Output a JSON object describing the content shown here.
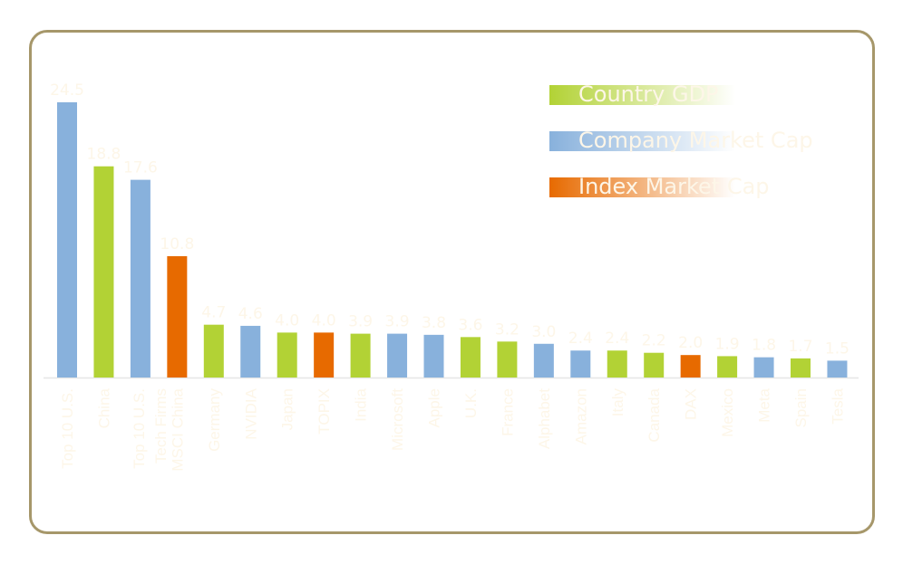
{
  "chart_data": {
    "type": "bar",
    "categories": [
      "Top 10 U.S.",
      "China",
      "Top 10 U.S. Tech Firms",
      "MSCI China",
      "Germany",
      "NVIDIA",
      "Japan",
      "TOPIX",
      "India",
      "Microsoft",
      "Apple",
      "U.K.",
      "France",
      "Alphabet",
      "Amazon",
      "Italy",
      "Canada",
      "DAX",
      "Mexico",
      "Meta",
      "Spain",
      "Tesla"
    ],
    "values": [
      24.5,
      18.8,
      17.6,
      10.8,
      4.7,
      4.6,
      4.0,
      4.0,
      3.9,
      3.9,
      3.8,
      3.6,
      3.2,
      3.0,
      2.4,
      2.4,
      2.2,
      2.0,
      1.9,
      1.8,
      1.7,
      1.5
    ],
    "value_labels": [
      "24.5",
      "18.8",
      "17.6",
      "10.8",
      "4.7",
      "4.6",
      "4.0",
      "4.0",
      "3.9",
      "3.9",
      "3.8",
      "3.6",
      "3.2",
      "3.0",
      "2.4",
      "2.4",
      "2.2",
      "2.0",
      "1.9",
      "1.8",
      "1.7",
      "1.5"
    ],
    "groups": [
      "company",
      "country",
      "company",
      "index",
      "country",
      "company",
      "country",
      "index",
      "country",
      "company",
      "company",
      "country",
      "country",
      "company",
      "company",
      "country",
      "country",
      "index",
      "country",
      "company",
      "country",
      "company"
    ],
    "legend": [
      {
        "key": "country",
        "name": "Country GDP",
        "color": "#b2d235"
      },
      {
        "key": "company",
        "name": "Company Market Cap",
        "color": "#88b1dc"
      },
      {
        "key": "index",
        "name": "Index Market Cap",
        "color": "#e76a00"
      }
    ],
    "legend_position": "top-right",
    "ylim": [
      0,
      24.5
    ],
    "grid": false,
    "title": "",
    "xlabel": "",
    "ylabel": ""
  },
  "colors": {
    "border": "#a6976a",
    "text": "#fdf6e8",
    "axis": "#e6e6e6"
  }
}
